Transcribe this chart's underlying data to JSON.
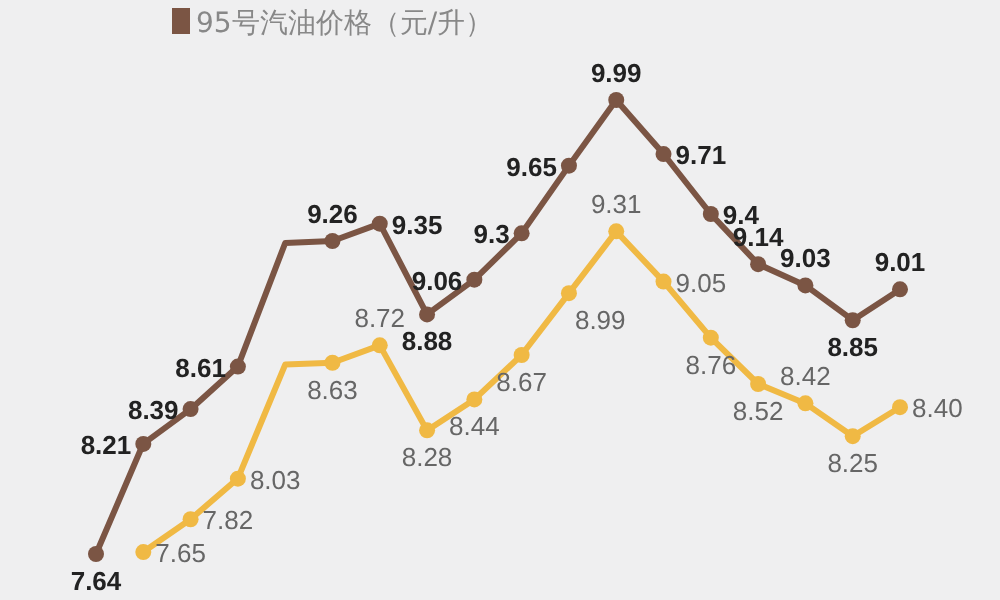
{
  "chart_data": {
    "type": "line",
    "legend": "top left",
    "tick_labels": false,
    "marker": "circle",
    "line_style": "solid",
    "categories": [
      null,
      null,
      null,
      null,
      null,
      null,
      null,
      null,
      null,
      null,
      null,
      null,
      null,
      null,
      null,
      null,
      null,
      null
    ],
    "series": [
      {
        "name": "95号汽油价格（元/升）",
        "color": "#7b5544",
        "values": [
          7.64,
          8.21,
          8.39,
          8.61,
          9.25,
          9.26,
          9.35,
          8.88,
          9.06,
          9.3,
          9.65,
          9.99,
          9.71,
          9.4,
          9.14,
          9.03,
          8.85,
          9.01
        ],
        "value_labels": [
          "7.64",
          "8.21",
          "8.39",
          "8.61",
          null,
          "9.26",
          "9.35",
          "8.88",
          "9.06",
          "9.3",
          "9.65",
          "9.99",
          "9.71",
          "9.4",
          "9.14",
          "9.03",
          "8.85",
          "9.01"
        ]
      },
      {
        "color": "#f0b944",
        "values": [
          null,
          7.65,
          7.82,
          8.03,
          8.62,
          8.63,
          8.72,
          8.28,
          8.44,
          8.67,
          8.99,
          9.31,
          9.05,
          8.76,
          8.52,
          8.42,
          8.25,
          8.4
        ],
        "value_labels": [
          null,
          "7.65",
          "7.82",
          "8.03",
          null,
          "8.63",
          "8.72",
          "8.28",
          "8.44",
          "8.67",
          "8.99",
          "9.31",
          "9.05",
          "8.76",
          "8.52",
          "8.42",
          "8.25",
          "8.40"
        ]
      }
    ]
  }
}
